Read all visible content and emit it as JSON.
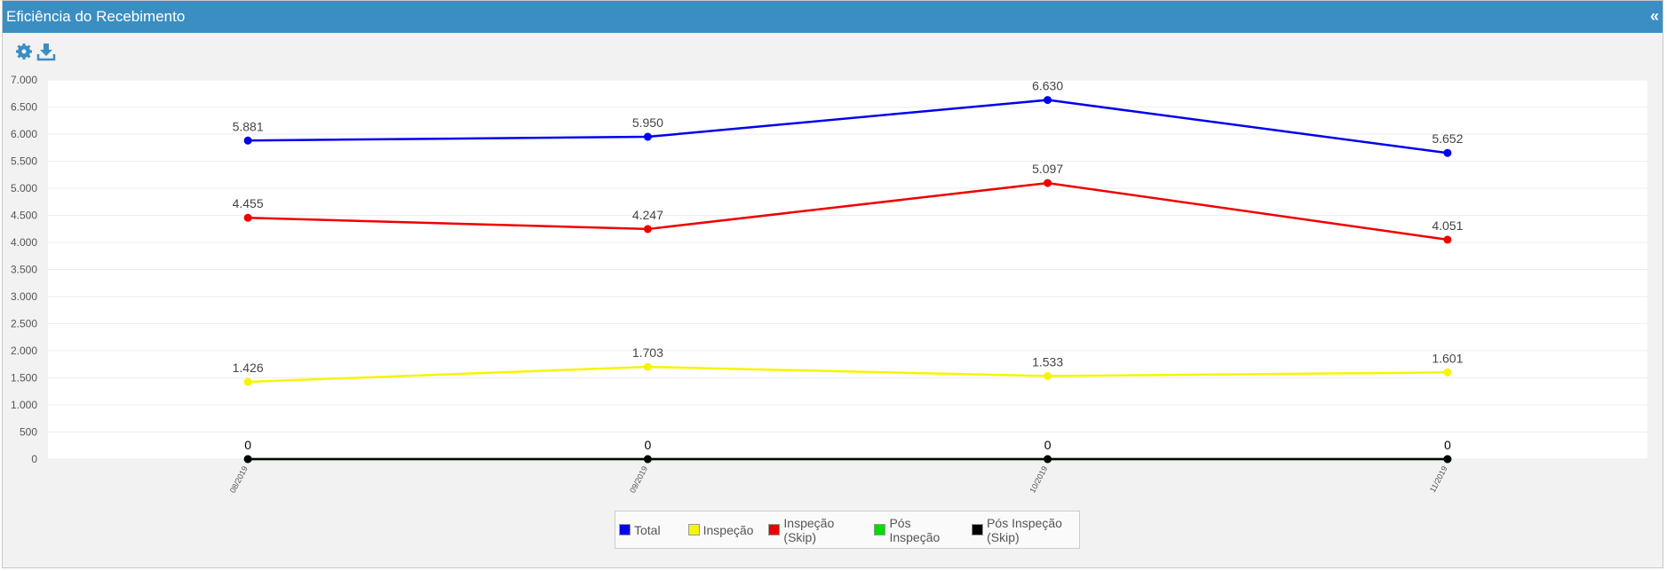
{
  "header": {
    "title": "Eficiência do Recebimento",
    "collapse": "«"
  },
  "chart_data": {
    "type": "line",
    "categories": [
      "08/2019",
      "09/2019",
      "10/2019",
      "11/2019"
    ],
    "series": [
      {
        "name": "Total",
        "color": "#0000ee",
        "values": [
          5881,
          5950,
          6630,
          5652
        ],
        "value_labels": [
          "5.881",
          "5.950",
          "6.630",
          "5.652"
        ]
      },
      {
        "name": "Inspeção",
        "color": "#f5f500",
        "values": [
          1426,
          1703,
          1533,
          1601
        ],
        "value_labels": [
          "1.426",
          "1.703",
          "1.533",
          "1.601"
        ]
      },
      {
        "name": "Inspeção (Skip)",
        "color": "#ee0000",
        "values": [
          4455,
          4247,
          5097,
          4051
        ],
        "value_labels": [
          "4.455",
          "4.247",
          "5.097",
          "4.051"
        ]
      },
      {
        "name": "Pós Inspeção",
        "color": "#00dd00",
        "values": [
          0,
          0,
          0,
          0
        ]
      },
      {
        "name": "Pós Inspeção (Skip)",
        "color": "#000000",
        "values": [
          0,
          0,
          0,
          0
        ],
        "value_labels": [
          "0",
          "0",
          "0",
          "0"
        ]
      }
    ],
    "ylim": [
      0,
      7000
    ],
    "yticks": [
      0,
      500,
      {
        "value": 1000,
        "label": "1.000"
      },
      {
        "value": 1500,
        "label": "1.500"
      },
      {
        "value": 2000,
        "label": "2.000"
      },
      {
        "value": 2500,
        "label": "2.500"
      },
      {
        "value": 3000,
        "label": "3.000"
      },
      {
        "value": 3500,
        "label": "3.500"
      },
      {
        "value": 4000,
        "label": "4.000"
      },
      {
        "value": 4500,
        "label": "4.500"
      },
      {
        "value": 5000,
        "label": "5.000"
      },
      {
        "value": 5500,
        "label": "5.500"
      },
      {
        "value": 6000,
        "label": "6.000"
      },
      {
        "value": 6500,
        "label": "6.500"
      },
      {
        "value": 7000,
        "label": "7.000"
      }
    ],
    "grid": true
  }
}
